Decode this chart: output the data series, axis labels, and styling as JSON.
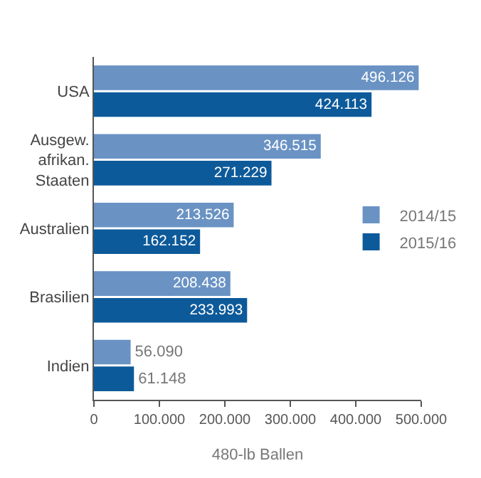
{
  "chart_data": {
    "type": "bar",
    "orientation": "horizontal",
    "xlabel": "480-lb Ballen",
    "categories": [
      "USA",
      "Ausgew. afrikan. Staaten",
      "Australien",
      "Brasilien",
      "Indien"
    ],
    "series": [
      {
        "name": "2014/15",
        "color": "#6a93c4",
        "values": [
          496126,
          346515,
          213526,
          208438,
          56090
        ],
        "value_labels": [
          "496.126",
          "346.515",
          "213.526",
          "208.438",
          "56.090"
        ]
      },
      {
        "name": "2015/16",
        "color": "#0d5a9a",
        "values": [
          424113,
          271229,
          162152,
          233993,
          61148
        ],
        "value_labels": [
          "424.113",
          "271.229",
          "162.152",
          "233.993",
          "61.148"
        ]
      }
    ],
    "xlim": [
      0,
      500000
    ],
    "xticks": [
      {
        "value": 0,
        "label": "0"
      },
      {
        "value": 100000,
        "label": "100.000"
      },
      {
        "value": 200000,
        "label": "200.000"
      },
      {
        "value": 300000,
        "label": "300.000"
      },
      {
        "value": 400000,
        "label": "400.000"
      },
      {
        "value": 500000,
        "label": "500.000"
      }
    ],
    "legend": "right"
  }
}
